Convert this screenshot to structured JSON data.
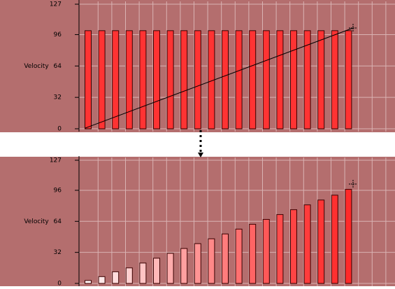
{
  "chart_data": [
    {
      "type": "bar",
      "y_label": "Velocity",
      "values": [
        100,
        100,
        100,
        100,
        100,
        100,
        100,
        100,
        100,
        100,
        100,
        100,
        100,
        100,
        100,
        100,
        100,
        100,
        100,
        100
      ],
      "colors": [
        "#ff3333",
        "#ff3333",
        "#ff3333",
        "#ff3333",
        "#ff3333",
        "#ff3333",
        "#ff3333",
        "#ff3333",
        "#ff3333",
        "#ff3333",
        "#ff3333",
        "#ff3333",
        "#ff3333",
        "#ff3333",
        "#ff3333",
        "#ff3333",
        "#ff3333",
        "#ff3333",
        "#ff3333",
        "#ff3333"
      ],
      "ylim": [
        0,
        127
      ],
      "yticks": [
        0,
        32,
        64,
        96,
        127
      ],
      "grid": true
    },
    {
      "type": "bar",
      "y_label": "Velocity",
      "values": [
        3,
        7,
        12,
        16,
        21,
        26,
        31,
        36,
        41,
        46,
        51,
        56,
        61,
        66,
        71,
        76,
        81,
        86,
        91,
        97
      ],
      "colors": [
        "#fff4f4",
        "#ffe8e8",
        "#ffdcdc",
        "#ffd0d0",
        "#ffc4c4",
        "#ffb8b8",
        "#ffacac",
        "#ffa0a0",
        "#ff9494",
        "#ff8888",
        "#ff7c7c",
        "#ff7070",
        "#ff6464",
        "#ff5858",
        "#ff4c4c",
        "#ff4444",
        "#ff3c3c",
        "#ff3636",
        "#ff3030",
        "#ff2a2a"
      ],
      "ylim": [
        0,
        127
      ],
      "yticks": [
        0,
        32,
        64,
        96,
        127
      ],
      "grid": true
    }
  ]
}
